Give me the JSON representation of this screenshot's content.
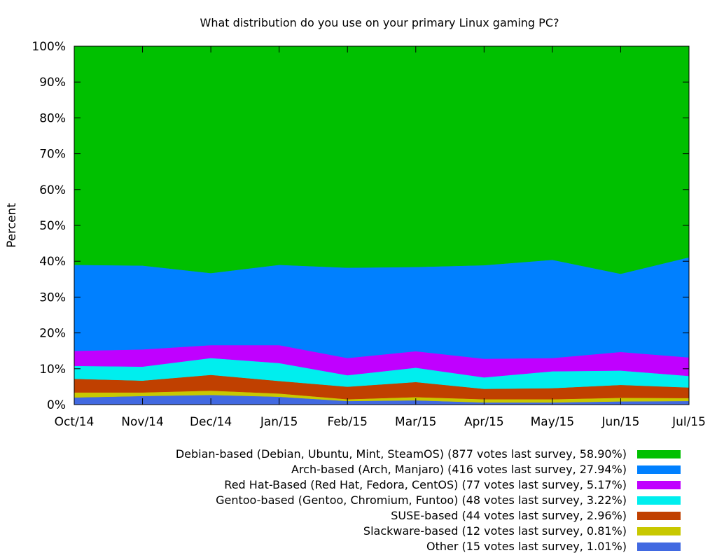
{
  "chart_data": {
    "type": "area",
    "stacked": true,
    "title": "What distribution do you use on your primary Linux gaming PC?",
    "ylabel": "Percent",
    "xlabel": "",
    "ylim": [
      0,
      100
    ],
    "y_ticks": [
      "0%",
      "10%",
      "20%",
      "30%",
      "40%",
      "50%",
      "60%",
      "70%",
      "80%",
      "90%",
      "100%"
    ],
    "categories": [
      "Oct/14",
      "Nov/14",
      "Dec/14",
      "Jan/15",
      "Feb/15",
      "Mar/15",
      "Apr/15",
      "May/15",
      "Jun/15",
      "Jul/15"
    ],
    "legend_position": "below",
    "series": [
      {
        "name": "Other (15 votes last survey, 1.01%)",
        "color": "#4169e1",
        "values": [
          2.0,
          2.4,
          2.7,
          2.2,
          1.0,
          1.2,
          0.6,
          0.6,
          0.9,
          1.01
        ]
      },
      {
        "name": "Slackware-based (12 votes last survey, 0.81%)",
        "color": "#c8c800",
        "values": [
          1.4,
          1.0,
          1.2,
          0.9,
          0.5,
          0.9,
          0.9,
          0.9,
          1.0,
          0.81
        ]
      },
      {
        "name": "SUSE-based (44 votes last survey, 2.96%)",
        "color": "#c04000",
        "values": [
          3.8,
          3.3,
          4.4,
          3.5,
          3.5,
          4.2,
          2.9,
          3.1,
          3.6,
          2.96
        ]
      },
      {
        "name": "Gentoo-based (Gentoo, Chromium, Funtoo) (48 votes last survey, 3.22%)",
        "color": "#00eeee",
        "values": [
          3.6,
          3.9,
          4.7,
          5.0,
          3.2,
          4.0,
          3.2,
          4.7,
          4.0,
          3.22
        ]
      },
      {
        "name": "Red Hat-Based (Red Hat, Fedora, CentOS) (77 votes last survey, 5.17%)",
        "color": "#c000ff",
        "values": [
          4.2,
          4.8,
          3.6,
          5.0,
          4.8,
          4.6,
          5.2,
          3.7,
          5.2,
          5.17
        ]
      },
      {
        "name": "Arch-based (Arch, Manjaro) (416 votes last survey, 27.94%)",
        "color": "#0080ff",
        "values": [
          24.0,
          23.4,
          20.1,
          22.4,
          25.2,
          23.5,
          26.1,
          27.4,
          21.8,
          27.94
        ]
      },
      {
        "name": "Debian-based (Debian, Ubuntu, Mint, SteamOS) (877 votes last survey, 58.90%)",
        "color": "#00c000",
        "values": [
          61.0,
          61.2,
          63.3,
          61.0,
          61.8,
          61.6,
          61.1,
          59.6,
          63.5,
          58.9
        ]
      }
    ]
  }
}
